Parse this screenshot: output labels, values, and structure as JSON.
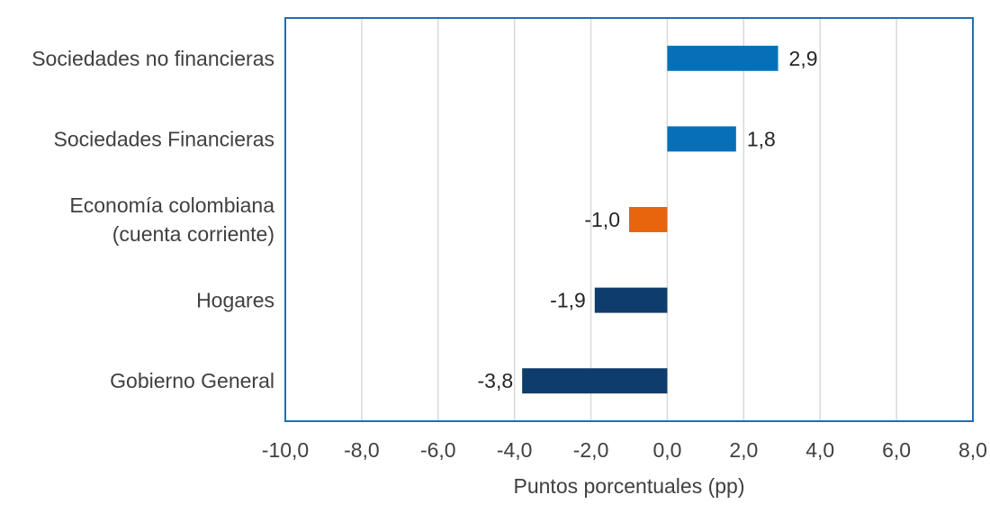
{
  "chart_data": {
    "type": "bar",
    "orientation": "horizontal",
    "categories": [
      [
        "Sociedades no financieras"
      ],
      [
        "Sociedades Financieras"
      ],
      [
        "Economía colombiana",
        "(cuenta corriente)"
      ],
      [
        "Hogares"
      ],
      [
        "Gobierno General"
      ]
    ],
    "values": [
      2.9,
      1.8,
      -1.0,
      -1.9,
      -3.8
    ],
    "value_labels": [
      "2,9",
      "1,8",
      "-1,0",
      "-1,9",
      "-3,8"
    ],
    "colors": [
      "#0570B8",
      "#0570B8",
      "#E8650E",
      "#0E3D6B",
      "#0E3D6B"
    ],
    "xlabel": "Puntos porcentuales (pp)",
    "xlim": [
      -10,
      8
    ],
    "xticks": [
      -10,
      -8,
      -6,
      -4,
      -2,
      0,
      2,
      4,
      6,
      8
    ],
    "xtick_labels": [
      "-10,0",
      "-8,0",
      "-6,0",
      "-4,0",
      "-2,0",
      "0,0",
      "2,0",
      "4,0",
      "6,0",
      "8,0"
    ],
    "grid": "vertical",
    "frame_color": "#1F6FB4",
    "grid_color": "#D9D9D9"
  }
}
